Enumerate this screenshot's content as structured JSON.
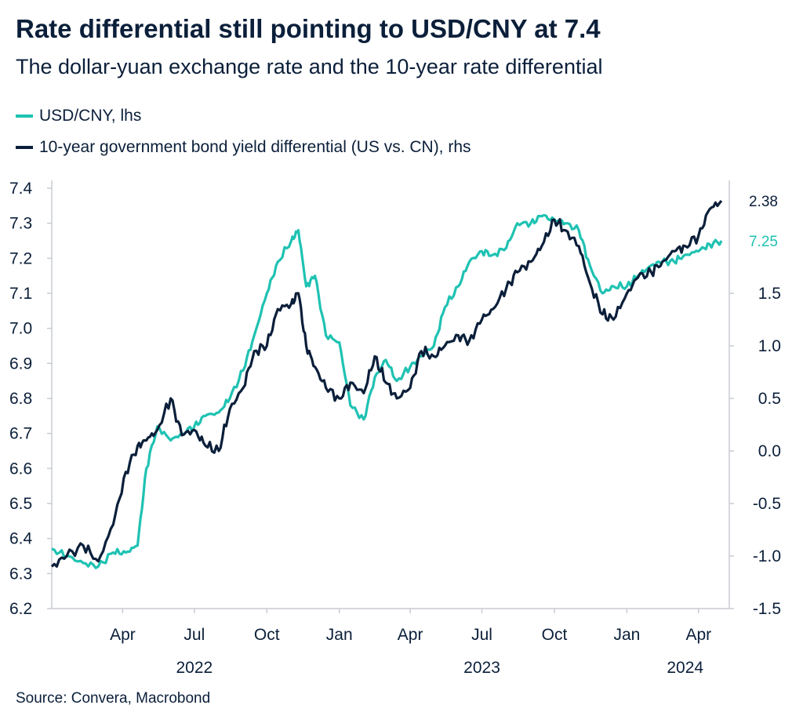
{
  "title": "Rate differential still pointing to USD/CNY at 7.4",
  "subtitle": "The dollar-yuan exchange rate and  the 10-year rate differential",
  "source": "Source: Convera, Macrobond",
  "colors": {
    "usdcny": "#1fc2b2",
    "diff": "#0b1f3a",
    "axis": "#c8ccd2"
  },
  "chart_data": {
    "type": "line",
    "title": "Rate differential still pointing to USD/CNY at 7.4",
    "legend_position": "top-left",
    "grid": false,
    "x_ticks": [
      "Apr",
      "Jul",
      "Oct",
      "Jan",
      "Apr",
      "Jul",
      "Oct",
      "Jan",
      "Apr"
    ],
    "x_years": [
      "2022",
      "2023",
      "2024"
    ],
    "left_axis": {
      "ylim": [
        6.2,
        7.4
      ],
      "ticks": [
        "7.4",
        "7.3",
        "7.2",
        "7.1",
        "7.0",
        "6.9",
        "6.8",
        "6.7",
        "6.6",
        "6.5",
        "6.4",
        "6.3",
        "6.2"
      ]
    },
    "right_axis": {
      "ylim": [
        -1.5,
        2.5
      ],
      "ticks": [
        "1.5",
        "1.0",
        "0.5",
        "0.0",
        "-0.5",
        "-1.0",
        "-1.5"
      ]
    },
    "series": [
      {
        "name": "USD/CNY, lhs",
        "axis": "left",
        "last_value_label": "7.25",
        "dates": [
          "2022-01-01",
          "2022-01-20",
          "2022-02-10",
          "2022-03-01",
          "2022-03-20",
          "2022-04-05",
          "2022-04-20",
          "2022-05-01",
          "2022-05-15",
          "2022-06-01",
          "2022-06-15",
          "2022-07-01",
          "2022-07-15",
          "2022-08-01",
          "2022-08-15",
          "2022-09-01",
          "2022-09-15",
          "2022-10-01",
          "2022-10-15",
          "2022-11-01",
          "2022-11-10",
          "2022-11-20",
          "2022-12-01",
          "2022-12-15",
          "2023-01-01",
          "2023-01-15",
          "2023-02-01",
          "2023-02-15",
          "2023-03-01",
          "2023-03-15",
          "2023-04-01",
          "2023-04-15",
          "2023-05-01",
          "2023-05-15",
          "2023-06-01",
          "2023-06-15",
          "2023-07-01",
          "2023-07-15",
          "2023-08-01",
          "2023-08-15",
          "2023-09-01",
          "2023-09-15",
          "2023-10-01",
          "2023-10-15",
          "2023-11-01",
          "2023-11-15",
          "2023-12-01",
          "2023-12-15",
          "2024-01-01",
          "2024-01-15",
          "2024-02-01",
          "2024-02-15",
          "2024-03-01",
          "2024-03-15",
          "2024-04-01",
          "2024-04-15",
          "2024-04-30"
        ],
        "values": [
          6.37,
          6.35,
          6.33,
          6.32,
          6.36,
          6.36,
          6.38,
          6.6,
          6.72,
          6.68,
          6.7,
          6.72,
          6.75,
          6.76,
          6.8,
          6.88,
          6.98,
          7.1,
          7.19,
          7.25,
          7.28,
          7.12,
          7.15,
          6.98,
          6.96,
          6.78,
          6.74,
          6.86,
          6.91,
          6.85,
          6.89,
          6.92,
          6.95,
          7.06,
          7.12,
          7.19,
          7.22,
          7.21,
          7.23,
          7.3,
          7.3,
          7.32,
          7.31,
          7.3,
          7.28,
          7.18,
          7.1,
          7.12,
          7.12,
          7.15,
          7.18,
          7.19,
          7.19,
          7.21,
          7.22,
          7.24,
          7.25
        ]
      },
      {
        "name": "10-year government bond yield differential (US vs. CN), rhs",
        "axis": "right",
        "last_value_label": "2.38",
        "dates": [
          "2022-01-01",
          "2022-01-20",
          "2022-02-10",
          "2022-03-01",
          "2022-03-20",
          "2022-04-05",
          "2022-04-20",
          "2022-05-01",
          "2022-05-15",
          "2022-06-01",
          "2022-06-15",
          "2022-07-01",
          "2022-07-15",
          "2022-08-01",
          "2022-08-15",
          "2022-09-01",
          "2022-09-15",
          "2022-10-01",
          "2022-10-15",
          "2022-11-01",
          "2022-11-10",
          "2022-11-20",
          "2022-12-01",
          "2022-12-15",
          "2023-01-01",
          "2023-01-15",
          "2023-02-01",
          "2023-02-15",
          "2023-03-01",
          "2023-03-15",
          "2023-04-01",
          "2023-04-15",
          "2023-05-01",
          "2023-05-15",
          "2023-06-01",
          "2023-06-15",
          "2023-07-01",
          "2023-07-15",
          "2023-08-01",
          "2023-08-15",
          "2023-09-01",
          "2023-09-15",
          "2023-10-01",
          "2023-10-15",
          "2023-11-01",
          "2023-11-15",
          "2023-12-01",
          "2023-12-15",
          "2024-01-01",
          "2024-01-15",
          "2024-02-01",
          "2024-02-15",
          "2024-03-01",
          "2024-03-15",
          "2024-04-01",
          "2024-04-15",
          "2024-04-30"
        ],
        "values": [
          -1.1,
          -1.0,
          -0.9,
          -1.05,
          -0.7,
          -0.2,
          0.05,
          0.1,
          0.2,
          0.5,
          0.15,
          0.2,
          0.05,
          0.0,
          0.4,
          0.6,
          0.95,
          1.0,
          1.35,
          1.4,
          1.5,
          1.0,
          0.8,
          0.6,
          0.5,
          0.65,
          0.55,
          0.9,
          0.65,
          0.5,
          0.6,
          0.95,
          0.9,
          1.0,
          1.1,
          1.05,
          1.25,
          1.35,
          1.55,
          1.7,
          1.8,
          1.95,
          2.2,
          2.1,
          1.95,
          1.6,
          1.3,
          1.25,
          1.5,
          1.65,
          1.7,
          1.8,
          1.9,
          1.95,
          2.05,
          2.3,
          2.38
        ]
      }
    ]
  }
}
